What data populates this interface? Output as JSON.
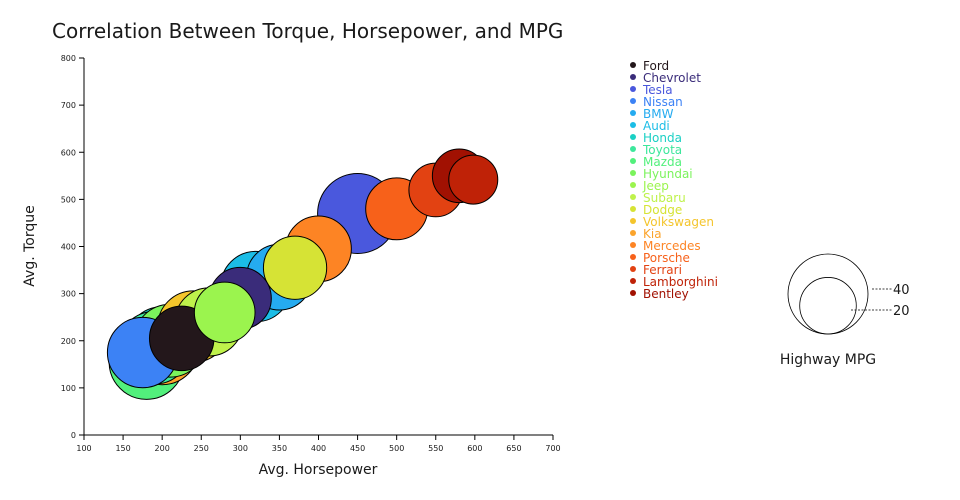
{
  "chart_data": {
    "type": "scatter",
    "title": "Correlation Between Torque, Horsepower, and MPG",
    "xlabel": "Avg. Horsepower",
    "ylabel": "Avg. Torque",
    "xlim": [
      100,
      700
    ],
    "ylim": [
      0,
      800
    ],
    "x_ticks": [
      100,
      150,
      200,
      250,
      300,
      350,
      400,
      450,
      500,
      550,
      600,
      650,
      700
    ],
    "y_ticks": [
      0,
      100,
      200,
      300,
      400,
      500,
      600,
      700,
      800
    ],
    "grid": false,
    "legend_position": "right",
    "size_legend": {
      "title": "Highway MPG",
      "values": [
        40,
        20
      ]
    },
    "points": [
      {
        "brand": "Ford",
        "color": "#23171b",
        "hp": 225,
        "torque": 205,
        "mpg": 26
      },
      {
        "brand": "Chevrolet",
        "color": "#3a2c7a",
        "hp": 300,
        "torque": 290,
        "mpg": 24
      },
      {
        "brand": "Tesla",
        "color": "#4a58dd",
        "hp": 450,
        "torque": 470,
        "mpg": 40
      },
      {
        "brand": "Nissan",
        "color": "#3c82f5",
        "hp": 175,
        "torque": 175,
        "mpg": 31
      },
      {
        "brand": "BMW",
        "color": "#25abf0",
        "hp": 350,
        "torque": 335,
        "mpg": 27
      },
      {
        "brand": "Audi",
        "color": "#1bbde6",
        "hp": 320,
        "torque": 315,
        "mpg": 31
      },
      {
        "brand": "Honda",
        "color": "#1ad0c4",
        "hp": 200,
        "torque": 195,
        "mpg": 33
      },
      {
        "brand": "Toyota",
        "color": "#3de79c",
        "hp": 190,
        "torque": 185,
        "mpg": 33
      },
      {
        "brand": "Mazda",
        "color": "#52f07c",
        "hp": 180,
        "torque": 155,
        "mpg": 35
      },
      {
        "brand": "Hyundai",
        "color": "#7bf35c",
        "hp": 210,
        "torque": 200,
        "mpg": 33
      },
      {
        "brand": "Jeep",
        "color": "#9bf44e",
        "hp": 280,
        "torque": 260,
        "mpg": 23
      },
      {
        "brand": "Subaru",
        "color": "#bff24b",
        "hp": 260,
        "torque": 240,
        "mpg": 29
      },
      {
        "brand": "Dodge",
        "color": "#d6e335",
        "hp": 370,
        "torque": 355,
        "mpg": 25
      },
      {
        "brand": "Volkswagen",
        "color": "#f4c52c",
        "hp": 240,
        "torque": 230,
        "mpg": 32
      },
      {
        "brand": "Kia",
        "color": "#fba42c",
        "hp": 200,
        "torque": 185,
        "mpg": 34
      },
      {
        "brand": "Mercedes",
        "color": "#fd8424",
        "hp": 400,
        "torque": 395,
        "mpg": 27
      },
      {
        "brand": "Porsche",
        "color": "#f7611a",
        "hp": 500,
        "torque": 480,
        "mpg": 24
      },
      {
        "brand": "Ferrari",
        "color": "#e24212",
        "hp": 550,
        "torque": 520,
        "mpg": 18
      },
      {
        "brand": "Lamborghini",
        "color": "#bf2207",
        "hp": 598,
        "torque": 542,
        "mpg": 15
      },
      {
        "brand": "Bentley",
        "color": "#a11102",
        "hp": 580,
        "torque": 550,
        "mpg": 18
      }
    ]
  }
}
